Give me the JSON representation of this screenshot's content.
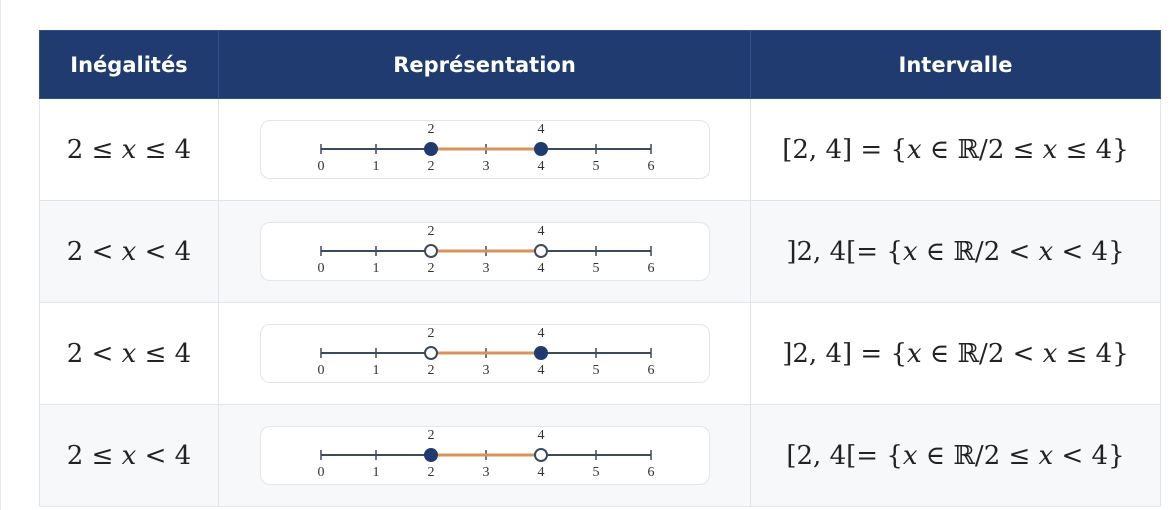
{
  "table": {
    "header": [
      "Inégalités",
      "Représentation",
      "Intervalle"
    ],
    "rows": [
      {
        "inequality": "2 ≤ x ≤ 4",
        "line": {
          "ticks": [
            0,
            1,
            2,
            3,
            4,
            5,
            6
          ],
          "start": {
            "value": 2,
            "closed": true
          },
          "end": {
            "value": 4,
            "closed": true
          }
        },
        "interval": "[2, 4] = {x ∈ ℝ/2 ≤ x ≤ 4}"
      },
      {
        "inequality": "2 < x < 4",
        "line": {
          "ticks": [
            0,
            1,
            2,
            3,
            4,
            5,
            6
          ],
          "start": {
            "value": 2,
            "closed": false
          },
          "end": {
            "value": 4,
            "closed": false
          }
        },
        "interval": "]2, 4[= {x ∈ ℝ/2 < x < 4}"
      },
      {
        "inequality": "2 < x ≤ 4",
        "line": {
          "ticks": [
            0,
            1,
            2,
            3,
            4,
            5,
            6
          ],
          "start": {
            "value": 2,
            "closed": false
          },
          "end": {
            "value": 4,
            "closed": true
          }
        },
        "interval": "]2, 4] = {x ∈ ℝ/2 < x ≤ 4}"
      },
      {
        "inequality": "2 ≤ x < 4",
        "line": {
          "ticks": [
            0,
            1,
            2,
            3,
            4,
            5,
            6
          ],
          "start": {
            "value": 2,
            "closed": true
          },
          "end": {
            "value": 4,
            "closed": false
          }
        },
        "interval": "[2, 4[= {x ∈ ℝ/2 ≤ x < 4}"
      }
    ]
  }
}
